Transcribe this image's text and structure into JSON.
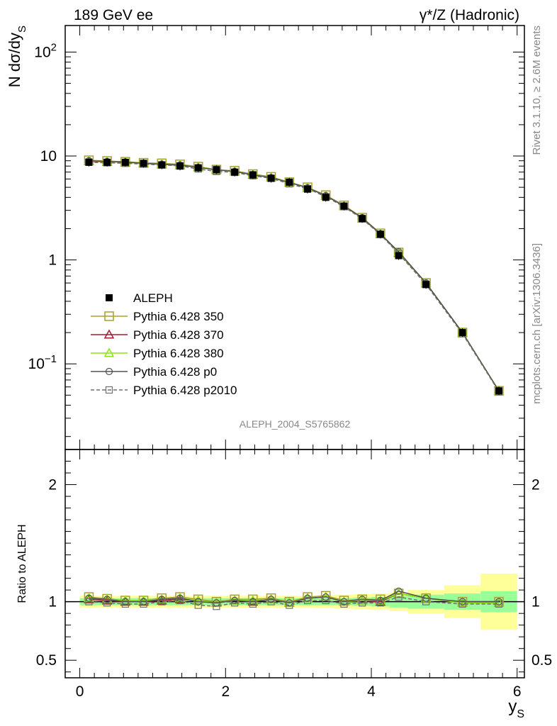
{
  "header": {
    "left_label": "189 GeV ee",
    "right_label_sup": "γ*/Z (Hadronic)"
  },
  "side_labels": {
    "rivet": "Rivet 3.1.10, ≥ 2.6M events",
    "mcplots": "mcplots.cern.ch [arXiv:1306.3436]"
  },
  "watermark": "ALEPH_2004_S5765862",
  "colors": {
    "data": "#000000",
    "p350": "#a8a032",
    "p370": "#a01e32",
    "p380": "#8ce614",
    "p0": "#505050",
    "p2010": "#707070",
    "band_inner": "#99ff99",
    "band_outer": "#ffff99"
  },
  "chart_data": [
    {
      "type": "line",
      "panel": "main",
      "ylabel_main": "N dσ/dy",
      "ylabel_sub": "S",
      "yscale": "log",
      "ylim": [
        0.015,
        180
      ],
      "xlim": [
        -0.2,
        6.1
      ],
      "yticks": [
        {
          "value": 0.1,
          "base": "10",
          "exp": "−1"
        },
        {
          "value": 1,
          "label": "1"
        },
        {
          "value": 10,
          "label": "10"
        },
        {
          "value": 100,
          "base": "10",
          "exp": "2"
        }
      ],
      "x": [
        0.125,
        0.375,
        0.625,
        0.875,
        1.125,
        1.375,
        1.625,
        1.875,
        2.125,
        2.375,
        2.625,
        2.875,
        3.125,
        3.375,
        3.625,
        3.875,
        4.125,
        4.375,
        4.75,
        5.25,
        5.75
      ],
      "series": [
        {
          "name": "ALEPH",
          "key": "data",
          "marker": "filled-square",
          "values": [
            8.7,
            8.7,
            8.7,
            8.5,
            8.2,
            8.0,
            7.7,
            7.4,
            7.0,
            6.6,
            6.1,
            5.6,
            4.8,
            4.0,
            3.3,
            2.5,
            1.77,
            1.1,
            0.58,
            0.2,
            0.055
          ]
        },
        {
          "name": "Pythia 6.428 350",
          "key": "p350",
          "marker": "open-square",
          "values": [
            9.1,
            8.95,
            8.8,
            8.6,
            8.5,
            8.3,
            7.9,
            7.4,
            7.2,
            6.7,
            6.3,
            5.6,
            5.0,
            4.2,
            3.35,
            2.55,
            1.8,
            1.18,
            0.6,
            0.2,
            0.055
          ]
        },
        {
          "name": "Pythia 6.428 370",
          "key": "p370",
          "marker": "open-triangle",
          "values": [
            8.9,
            8.8,
            8.7,
            8.5,
            8.3,
            8.15,
            7.8,
            7.4,
            7.1,
            6.6,
            6.2,
            5.6,
            4.95,
            4.15,
            3.3,
            2.52,
            1.78,
            1.17,
            0.6,
            0.2,
            0.055
          ]
        },
        {
          "name": "Pythia 6.428 380",
          "key": "p380",
          "marker": "open-triangle",
          "values": [
            8.95,
            8.85,
            8.75,
            8.55,
            8.35,
            8.2,
            7.8,
            7.4,
            7.1,
            6.65,
            6.2,
            5.6,
            4.95,
            4.15,
            3.3,
            2.53,
            1.79,
            1.18,
            0.6,
            0.2,
            0.055
          ]
        },
        {
          "name": "Pythia 6.428 p0",
          "key": "p0",
          "marker": "open-circle",
          "values": [
            9.0,
            8.85,
            8.75,
            8.5,
            8.35,
            8.2,
            7.75,
            7.35,
            7.1,
            6.6,
            6.2,
            5.55,
            4.95,
            4.15,
            3.3,
            2.55,
            1.78,
            1.2,
            0.6,
            0.2,
            0.055
          ]
        },
        {
          "name": "Pythia 6.428 p2010",
          "key": "p2010",
          "marker": "open-square-dashed",
          "values": [
            8.7,
            8.6,
            8.5,
            8.35,
            8.2,
            8.05,
            7.5,
            7.1,
            6.95,
            6.45,
            6.1,
            5.4,
            4.85,
            4.05,
            3.25,
            2.48,
            1.75,
            1.15,
            0.58,
            0.195,
            0.054
          ]
        }
      ]
    },
    {
      "type": "line",
      "panel": "ratio",
      "ylabel": "Ratio to ALEPH",
      "ylim": [
        0.35,
        2.3
      ],
      "xlim": [
        -0.2,
        6.1
      ],
      "xlabel_main": "y",
      "xlabel_sub": "S",
      "yticks": [
        0.5,
        1,
        2
      ],
      "xticks": [
        0,
        2,
        4,
        6
      ],
      "x": [
        0.125,
        0.375,
        0.625,
        0.875,
        1.125,
        1.375,
        1.625,
        1.875,
        2.125,
        2.375,
        2.625,
        2.875,
        3.125,
        3.375,
        3.625,
        3.875,
        4.125,
        4.375,
        4.75,
        5.25,
        5.75
      ],
      "bins": [
        [
          0,
          0.25
        ],
        [
          0.25,
          0.5
        ],
        [
          0.5,
          0.75
        ],
        [
          0.75,
          1.0
        ],
        [
          1.0,
          1.25
        ],
        [
          1.25,
          1.5
        ],
        [
          1.5,
          1.75
        ],
        [
          1.75,
          2.0
        ],
        [
          2.0,
          2.25
        ],
        [
          2.25,
          2.5
        ],
        [
          2.5,
          2.75
        ],
        [
          2.75,
          3.0
        ],
        [
          3.0,
          3.25
        ],
        [
          3.25,
          3.5
        ],
        [
          3.5,
          3.75
        ],
        [
          3.75,
          4.0
        ],
        [
          4.0,
          4.25
        ],
        [
          4.25,
          4.5
        ],
        [
          4.5,
          5.0
        ],
        [
          5.0,
          5.5
        ],
        [
          5.5,
          6.0
        ]
      ],
      "band_inner": [
        0.03,
        0.03,
        0.03,
        0.03,
        0.03,
        0.03,
        0.03,
        0.03,
        0.03,
        0.03,
        0.03,
        0.03,
        0.03,
        0.03,
        0.03,
        0.035,
        0.04,
        0.05,
        0.06,
        0.07,
        0.09
      ],
      "band_outer": [
        0.05,
        0.05,
        0.05,
        0.05,
        0.05,
        0.05,
        0.05,
        0.05,
        0.05,
        0.05,
        0.05,
        0.05,
        0.05,
        0.055,
        0.06,
        0.065,
        0.07,
        0.08,
        0.1,
        0.14,
        0.24
      ],
      "series": [
        {
          "name": "Pythia 6.428 350",
          "key": "p350",
          "marker": "open-square",
          "values": [
            1.04,
            1.025,
            1.01,
            1.01,
            1.03,
            1.04,
            1.02,
            1.0,
            1.02,
            1.02,
            1.03,
            1.0,
            1.04,
            1.05,
            1.01,
            1.02,
            1.02,
            1.07,
            1.03,
            1.0,
            1.0
          ]
        },
        {
          "name": "Pythia 6.428 370",
          "key": "p370",
          "marker": "open-triangle",
          "values": [
            1.02,
            1.01,
            1.0,
            1.0,
            1.01,
            1.02,
            1.01,
            0.99,
            1.01,
            1.0,
            1.02,
            0.99,
            1.03,
            1.04,
            1.0,
            1.01,
            1.0,
            1.07,
            1.03,
            0.99,
            0.99
          ]
        },
        {
          "name": "Pythia 6.428 380",
          "key": "p380",
          "marker": "open-triangle",
          "values": [
            1.03,
            1.02,
            1.01,
            1.01,
            1.02,
            1.03,
            1.01,
            0.99,
            1.01,
            1.01,
            1.02,
            0.99,
            1.03,
            1.04,
            1.0,
            1.01,
            1.01,
            1.07,
            1.03,
            0.99,
            0.99
          ]
        },
        {
          "name": "Pythia 6.428 p0",
          "key": "p0",
          "marker": "open-circle",
          "values": [
            1.03,
            1.02,
            1.0,
            1.0,
            1.02,
            1.03,
            1.0,
            0.99,
            1.01,
            1.0,
            1.02,
            0.99,
            1.03,
            1.04,
            1.0,
            1.02,
            1.01,
            1.09,
            1.03,
            1.0,
            1.0
          ]
        },
        {
          "name": "Pythia 6.428 p2010",
          "key": "p2010",
          "marker": "open-square-dashed",
          "values": [
            1.0,
            0.99,
            0.98,
            0.98,
            1.0,
            1.01,
            0.97,
            0.96,
            0.99,
            0.98,
            1.0,
            0.97,
            1.01,
            1.01,
            0.98,
            0.99,
            0.99,
            1.04,
            1.0,
            0.98,
            0.98
          ]
        }
      ]
    }
  ]
}
